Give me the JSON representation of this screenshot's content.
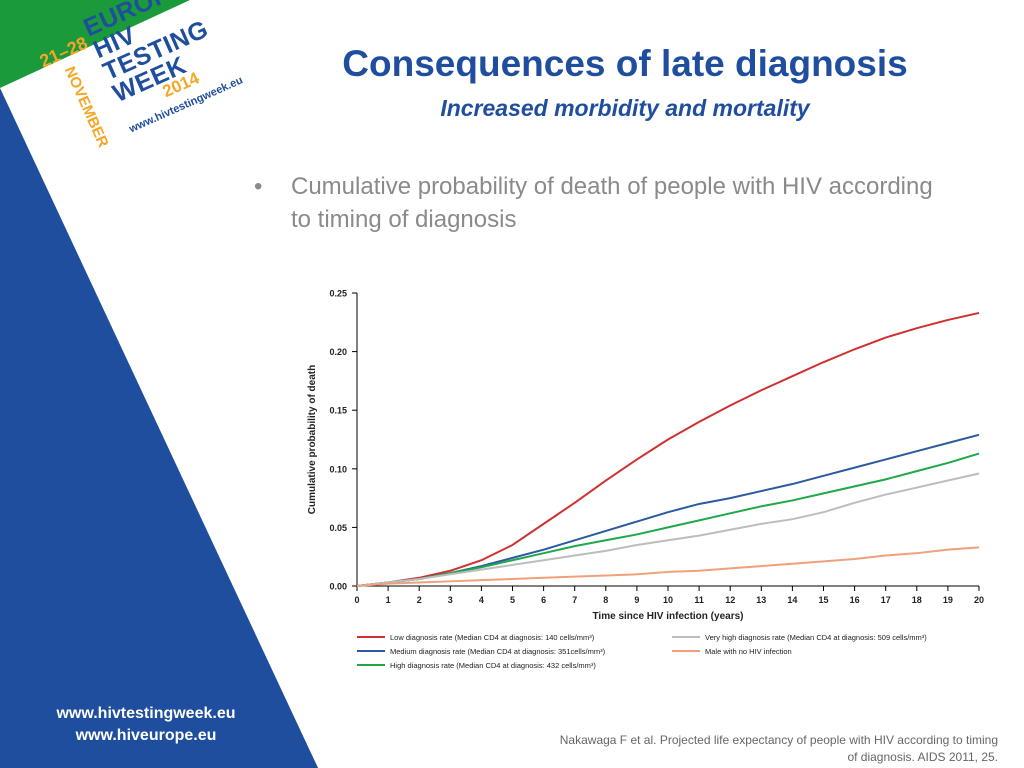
{
  "slide": {
    "title": "Consequences of late diagnosis",
    "subtitle": "Increased morbidity and mortality",
    "bullet_symbol": "•",
    "bullet": "Cumulative probability of death of people with HIV according to timing of diagnosis",
    "citation_line1": "Nakawaga F et al. Projected life expectancy of people with HIV according to timing",
    "citation_line2": "of diagnosis. AIDS 2011, 25.",
    "links": [
      "www.hivtestingweek.eu",
      "www.hiveurope.eu"
    ]
  },
  "logo": {
    "line1": "EUROPEAN",
    "line2": "HIV",
    "line3": "TESTING",
    "line4": "WEEK",
    "dates": "21–28",
    "month": "NOVEMBER",
    "year": "2014",
    "url": "www.hivtestingweek.eu"
  },
  "colors": {
    "blue": "#1f4e9e",
    "green": "#1a9a3a",
    "orange": "#f5a623",
    "gray_text": "#8a8a8a"
  },
  "chart_data": {
    "type": "line",
    "xlabel": "Time since HIV infection (years)",
    "ylabel": "Cumulative probability of death",
    "xlim": [
      0,
      20
    ],
    "ylim": [
      0,
      0.25
    ],
    "x_ticks": [
      0,
      1,
      2,
      3,
      4,
      5,
      6,
      7,
      8,
      9,
      10,
      11,
      12,
      13,
      14,
      15,
      16,
      17,
      18,
      19,
      20
    ],
    "y_ticks": [
      "0.00",
      "0.05",
      "0.10",
      "0.15",
      "0.20",
      "0.25"
    ],
    "grid": false,
    "legend_position": "bottom",
    "x": [
      0,
      1,
      2,
      3,
      4,
      5,
      6,
      7,
      8,
      9,
      10,
      11,
      12,
      13,
      14,
      15,
      16,
      17,
      18,
      19,
      20
    ],
    "series": [
      {
        "name": "Low diagnosis rate (Median CD4 at diagnosis: 140 cells/mm³)",
        "color": "#d03030",
        "values": [
          0,
          0.003,
          0.007,
          0.013,
          0.022,
          0.035,
          0.053,
          0.071,
          0.09,
          0.108,
          0.125,
          0.14,
          0.154,
          0.167,
          0.179,
          0.191,
          0.202,
          0.212,
          0.22,
          0.227,
          0.233
        ]
      },
      {
        "name": "Medium diagnosis rate (Median CD4 at diagnosis: 351cells/mm³)",
        "color": "#2c5aa0",
        "values": [
          0,
          0.003,
          0.006,
          0.011,
          0.017,
          0.024,
          0.031,
          0.039,
          0.047,
          0.055,
          0.063,
          0.07,
          0.075,
          0.081,
          0.087,
          0.094,
          0.101,
          0.108,
          0.115,
          0.122,
          0.129
        ]
      },
      {
        "name": "High diagnosis rate (Median CD4 at diagnosis: 432 cells/mm³)",
        "color": "#1fa84a",
        "values": [
          0,
          0.003,
          0.006,
          0.011,
          0.016,
          0.022,
          0.028,
          0.034,
          0.039,
          0.044,
          0.05,
          0.056,
          0.062,
          0.068,
          0.073,
          0.079,
          0.085,
          0.091,
          0.098,
          0.105,
          0.113
        ]
      },
      {
        "name": "Very high diagnosis rate (Median CD4 at diagnosis: 509 cells/mm³)",
        "color": "#bdbdbd",
        "values": [
          0,
          0.003,
          0.006,
          0.01,
          0.014,
          0.018,
          0.022,
          0.026,
          0.03,
          0.035,
          0.039,
          0.043,
          0.048,
          0.053,
          0.057,
          0.063,
          0.071,
          0.078,
          0.084,
          0.09,
          0.096
        ]
      },
      {
        "name": "Male with no HIV infection",
        "color": "#f0a07a",
        "values": [
          0,
          0.002,
          0.003,
          0.004,
          0.005,
          0.006,
          0.007,
          0.008,
          0.009,
          0.01,
          0.012,
          0.013,
          0.015,
          0.017,
          0.019,
          0.021,
          0.023,
          0.026,
          0.028,
          0.031,
          0.033
        ]
      }
    ]
  }
}
